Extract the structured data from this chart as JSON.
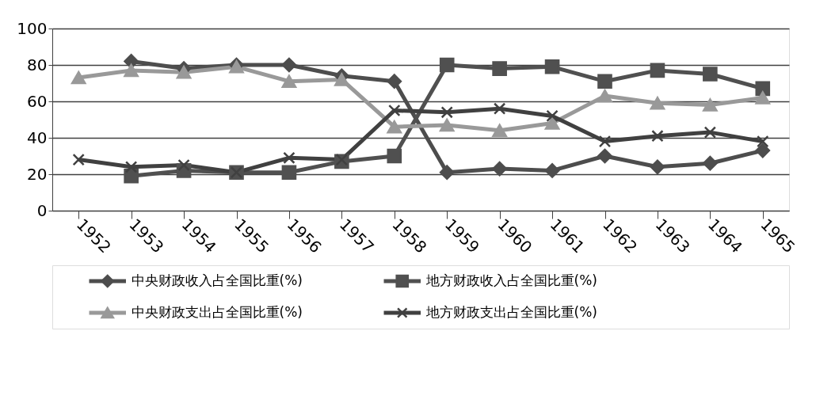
{
  "chart_data": {
    "type": "line",
    "categories": [
      "1952",
      "1953",
      "1954",
      "1955",
      "1956",
      "1957",
      "1958",
      "1959",
      "1960",
      "1961",
      "1962",
      "1963",
      "1964",
      "1965"
    ],
    "series": [
      {
        "name": "中央财政收入占全国比重(%)",
        "color": "#4d4d4d",
        "marker": "diamond",
        "values": [
          null,
          82,
          78,
          80,
          80,
          74,
          71,
          21,
          23,
          22,
          30,
          24,
          26,
          33
        ]
      },
      {
        "name": "地方财政收入占全国比重(%)",
        "color": "#505050",
        "marker": "square",
        "values": [
          null,
          19,
          22,
          21,
          21,
          27,
          30,
          80,
          78,
          79,
          71,
          77,
          75,
          67
        ]
      },
      {
        "name": "中央财政支出占全国比重(%)",
        "color": "#999999",
        "marker": "triangle",
        "values": [
          73,
          77,
          76,
          79,
          71,
          72,
          46,
          47,
          44,
          48,
          63,
          59,
          58,
          62
        ]
      },
      {
        "name": "地方财政支出占全国比重(%)",
        "color": "#404040",
        "marker": "cross",
        "values": [
          28,
          24,
          25,
          21,
          29,
          28,
          55,
          54,
          56,
          52,
          38,
          41,
          43,
          38
        ]
      }
    ],
    "ylim": [
      0,
      100
    ],
    "yticks": [
      0,
      20,
      40,
      60,
      80,
      100
    ],
    "grid": "y",
    "legend": "bottom",
    "line_style": "solid"
  }
}
